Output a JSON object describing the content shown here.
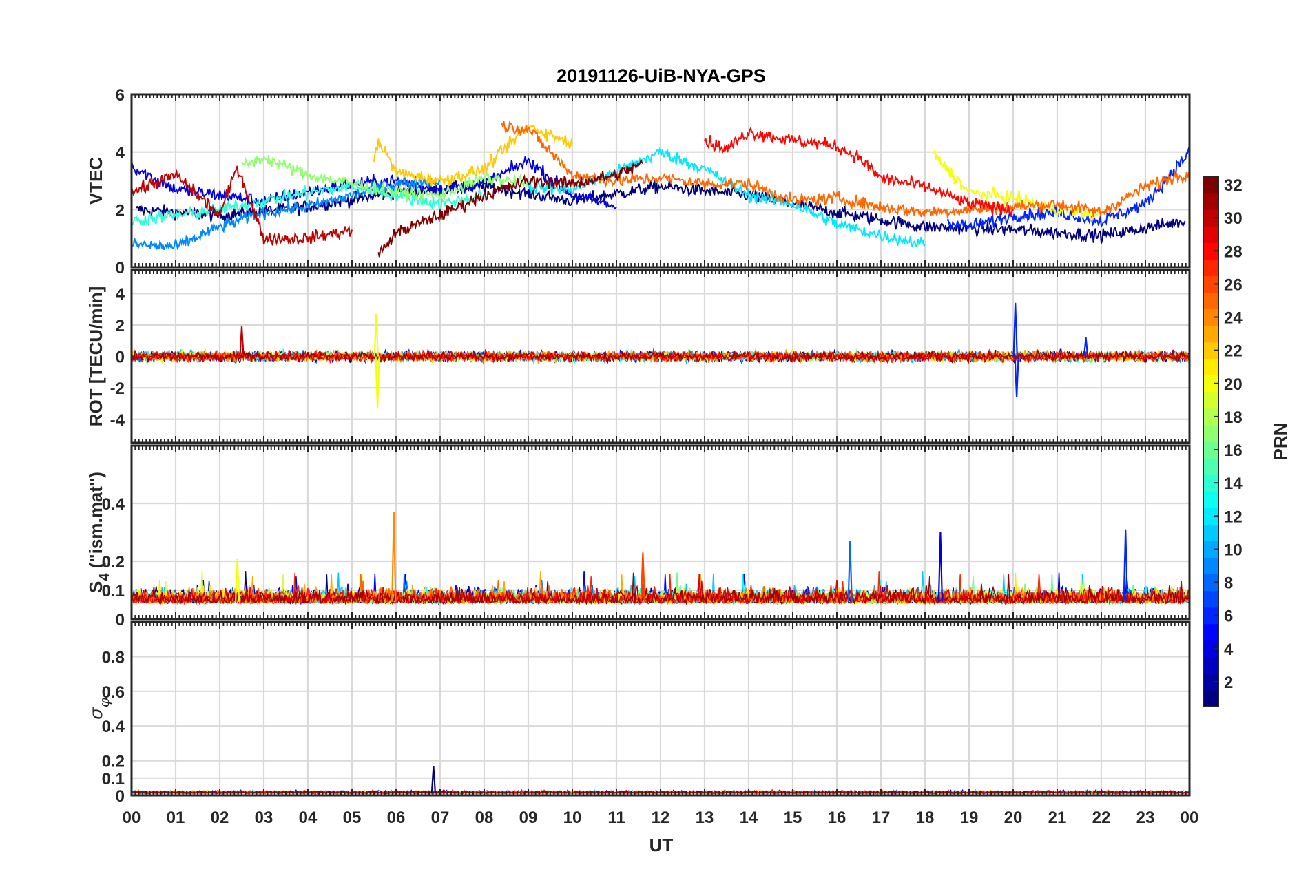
{
  "chart_data": {
    "type": "line",
    "title": "20191126-UiB-NYA-GPS",
    "xlabel": "UT",
    "x_tick_labels": [
      "00",
      "01",
      "02",
      "03",
      "04",
      "05",
      "06",
      "07",
      "08",
      "09",
      "10",
      "11",
      "12",
      "13",
      "14",
      "15",
      "16",
      "17",
      "18",
      "19",
      "20",
      "21",
      "22",
      "23",
      "00"
    ],
    "x_range_hours": [
      0,
      24
    ],
    "grid": true,
    "colorbar": {
      "label": "PRN",
      "range": [
        1,
        32
      ],
      "ticks": [
        2,
        4,
        6,
        8,
        10,
        12,
        14,
        16,
        18,
        20,
        22,
        24,
        26,
        28,
        30,
        32
      ],
      "colormap": "jet",
      "placement": "right"
    },
    "panels": [
      {
        "id": "vtec",
        "ylabel": "VTEC",
        "ylim": [
          0,
          6
        ],
        "y_ticks": [
          0,
          2,
          4,
          6
        ],
        "series_note": "GPS satellites PRN 1-32, one colored trace per PRN",
        "series": [
          {
            "prn": 1,
            "x": [
              0.1,
              2,
              4,
              6,
              8,
              10,
              12,
              14,
              16,
              18,
              20,
              22,
              23.9
            ],
            "values": [
              2.0,
              1.8,
              2.1,
              2.6,
              2.8,
              2.3,
              2.8,
              2.5,
              1.9,
              1.4,
              1.3,
              1.1,
              1.6
            ]
          },
          {
            "prn": 4,
            "x": [
              0,
              1,
              2,
              3,
              4,
              5,
              6,
              7,
              8,
              9,
              10,
              11
            ],
            "values": [
              3.5,
              2.7,
              2.5,
              2.3,
              2.6,
              2.9,
              3.0,
              2.7,
              2.9,
              3.7,
              2.5,
              2.1
            ]
          },
          {
            "prn": 6,
            "x": [
              18.5,
              19,
              20,
              21,
              22,
              23,
              24
            ],
            "values": [
              1.6,
              1.4,
              1.8,
              1.9,
              1.6,
              2.2,
              4.0
            ]
          },
          {
            "prn": 9,
            "x": [
              0,
              1,
              2,
              3,
              4,
              5,
              6,
              7
            ],
            "values": [
              0.8,
              0.7,
              1.4,
              1.9,
              2.1,
              2.5,
              2.9,
              3.0
            ]
          },
          {
            "prn": 12,
            "x": [
              9,
              10,
              11,
              12,
              13,
              14,
              15,
              16,
              17,
              18
            ],
            "values": [
              2.8,
              2.7,
              3.3,
              4.0,
              3.4,
              2.5,
              2.2,
              1.5,
              1.1,
              0.8
            ]
          },
          {
            "prn": 14,
            "x": [
              0,
              1,
              2,
              3,
              4,
              5,
              6,
              7,
              8
            ],
            "values": [
              1.6,
              1.8,
              2.0,
              2.3,
              2.6,
              2.8,
              2.5,
              2.2,
              2.5
            ]
          },
          {
            "prn": 17,
            "x": [
              2.5,
              3,
              4,
              5,
              6,
              7,
              8,
              9
            ],
            "values": [
              3.5,
              3.8,
              3.2,
              2.9,
              2.6,
              2.5,
              3.1,
              2.9
            ]
          },
          {
            "prn": 20,
            "x": [
              18.2,
              19,
              20,
              21,
              22
            ],
            "values": [
              3.9,
              2.6,
              2.4,
              2.0,
              1.8
            ]
          },
          {
            "prn": 22,
            "x": [
              5.5,
              5.6,
              6,
              7,
              8,
              9,
              10
            ],
            "values": [
              3.8,
              4.4,
              3.3,
              3.0,
              3.4,
              4.9,
              4.3
            ]
          },
          {
            "prn": 25,
            "x": [
              8.4,
              9,
              10,
              11,
              12,
              13,
              14,
              15,
              16,
              17,
              18,
              19,
              20,
              21,
              22,
              23,
              24
            ],
            "values": [
              4.9,
              4.8,
              3.2,
              3.0,
              3.1,
              2.9,
              2.9,
              2.3,
              2.4,
              2.1,
              1.9,
              2.0,
              2.1,
              2.2,
              1.9,
              2.8,
              3.3
            ]
          },
          {
            "prn": 28,
            "x": [
              13,
              13.5,
              14,
              15,
              16,
              16.5,
              17,
              18,
              19,
              20
            ],
            "values": [
              4.4,
              4.1,
              4.7,
              4.4,
              4.2,
              3.8,
              3.1,
              2.8,
              2.2,
              2.0
            ]
          },
          {
            "prn": 30,
            "x": [
              0,
              1,
              2,
              2.4,
              3,
              4,
              5
            ],
            "values": [
              2.6,
              3.2,
              1.8,
              3.5,
              1.0,
              1.0,
              1.3
            ]
          },
          {
            "prn": 32,
            "x": [
              5.6,
              6,
              7,
              8,
              9,
              10,
              11,
              11.6
            ],
            "values": [
              0.4,
              1.2,
              1.8,
              2.5,
              3.0,
              2.9,
              3.2,
              3.6
            ]
          }
        ]
      },
      {
        "id": "rot",
        "ylabel": "ROT [TECU/min]",
        "ylim": [
          -5.5,
          5.5
        ],
        "y_ticks": [
          -4,
          -2,
          0,
          2,
          4
        ],
        "series_note": "noise around 0 with isolated spikes",
        "spikes": [
          {
            "hour": 2.5,
            "value": 1.9,
            "prn": 30
          },
          {
            "hour": 5.55,
            "value": 2.7,
            "prn": 20
          },
          {
            "hour": 5.58,
            "value": -3.3,
            "prn": 20
          },
          {
            "hour": 20.05,
            "value": 3.4,
            "prn": 6
          },
          {
            "hour": 20.08,
            "value": -2.6,
            "prn": 6
          },
          {
            "hour": 21.65,
            "value": 1.2,
            "prn": 6
          }
        ]
      },
      {
        "id": "s4",
        "ylabel": "S_4 (\"ism.mat\")",
        "ylabel_parts": {
          "symbol": "S",
          "subscript": "4",
          "rest": " (\"ism.mat\")"
        },
        "ylim": [
          0,
          0.6
        ],
        "y_ticks": [
          0,
          0.1,
          0.2,
          0.4
        ],
        "series_note": "background 0.04-0.12 with spikes",
        "spikes": [
          {
            "hour": 5.95,
            "value": 0.37,
            "prn": 24
          },
          {
            "hour": 16.3,
            "value": 0.27,
            "prn": 8
          },
          {
            "hour": 18.35,
            "value": 0.3,
            "prn": 4
          },
          {
            "hour": 22.55,
            "value": 0.31,
            "prn": 6
          },
          {
            "hour": 11.6,
            "value": 0.23,
            "prn": 26
          },
          {
            "hour": 2.4,
            "value": 0.21,
            "prn": 20
          }
        ]
      },
      {
        "id": "sigma_phi",
        "ylabel": "σ_φ",
        "ylabel_parts": {
          "symbol": "σ",
          "subscript": "φ"
        },
        "ylim": [
          0,
          1
        ],
        "y_ticks": [
          0,
          0.1,
          0.2,
          0.4,
          0.6,
          0.8
        ],
        "series_note": "near zero everywhere",
        "spikes": [
          {
            "hour": 6.85,
            "value": 0.17,
            "prn": 1
          }
        ]
      }
    ]
  }
}
